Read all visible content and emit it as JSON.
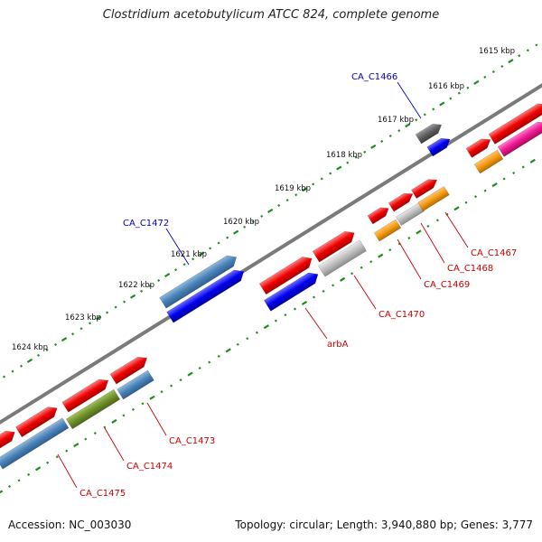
{
  "title": "Clostridium acetobutylicum ATCC 824, complete genome",
  "footer": {
    "accession": "Accession: NC_003030",
    "summary": "Topology: circular; Length: 3,940,880 bp; Genes: 3,777"
  },
  "colors": {
    "backbone": "#7a7a7a",
    "tick": "#1e8c1e",
    "label_red": "#cc0000",
    "label_blue": "#0000bb"
  },
  "scale_labels": [
    "1615 kbp",
    "1616 kbp",
    "1617 kbp",
    "1618 kbp",
    "1619 kbp",
    "1620 kbp",
    "1621 kbp",
    "1622 kbp",
    "1623 kbp",
    "1624 kbp"
  ],
  "gene_labels": [
    {
      "text": "CA_C1466",
      "color": "blue"
    },
    {
      "text": "CA_C1467",
      "color": "red"
    },
    {
      "text": "CA_C1468",
      "color": "red"
    },
    {
      "text": "CA_C1469",
      "color": "red"
    },
    {
      "text": "CA_C1470",
      "color": "red"
    },
    {
      "text": "arbA",
      "color": "red"
    },
    {
      "text": "CA_C1472",
      "color": "blue"
    },
    {
      "text": "CA_C1473",
      "color": "red"
    },
    {
      "text": "CA_C1474",
      "color": "red"
    },
    {
      "text": "CA_C1475",
      "color": "red"
    }
  ]
}
